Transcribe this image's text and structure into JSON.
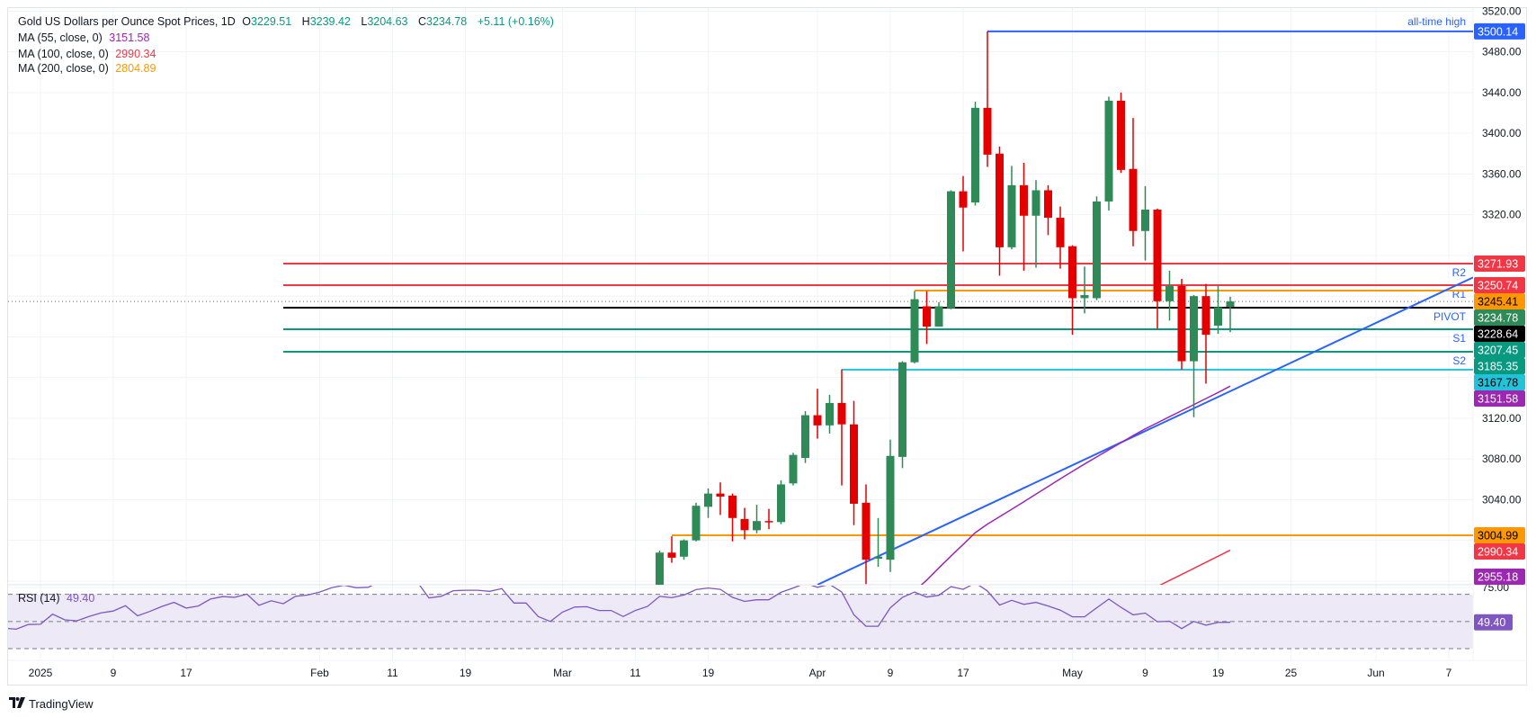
{
  "legend": {
    "title": "Gold US Dollars per Ounce Spot Prices, 1D",
    "open_label": "O",
    "open": "3229.51",
    "high_label": "H",
    "high": "3239.42",
    "low_label": "L",
    "low": "3204.63",
    "close_label": "C",
    "close": "3234.78",
    "change": "+5.11 (+0.16%)",
    "ma55_label": "MA (55, close, 0)",
    "ma55_value": "3151.58",
    "ma100_label": "MA (100, close, 0)",
    "ma100_value": "2990.34",
    "ma200_label": "MA (200, close, 0)",
    "ma200_value": "2804.89"
  },
  "rsi_legend": {
    "label": "RSI (14)",
    "value": "49.40"
  },
  "branding": {
    "logo_icon": "tradingview-logo-icon",
    "name": "TradingView"
  },
  "colors": {
    "up": "#2e8b57",
    "down": "#e50000",
    "ma55": "#9c27b0",
    "ma100": "#f23645",
    "ma200": "#ff9800",
    "trendline": "#2962ff",
    "rsi": "#7e57c2",
    "pivot": "#000000",
    "resistance": "#f23645",
    "support": "#089981"
  },
  "chart_data": [
    {
      "type": "candlestick",
      "title": "Gold US Dollars per Ounce Spot Prices, 1D",
      "ylim": [
        2956.4,
        3523
      ],
      "first_candle_bar": 54,
      "last_bar": 101,
      "ohlc_fields": [
        "open",
        "high",
        "low",
        "close"
      ],
      "candles": [
        [
          2950,
          2990,
          2945,
          2988
        ],
        [
          2988,
          3004,
          2978,
          2983
        ],
        [
          2984,
          3001,
          2981,
          3000
        ],
        [
          3000,
          3037,
          2999,
          3034
        ],
        [
          3033,
          3051,
          3022,
          3046
        ],
        [
          3046,
          3057,
          3025,
          3043
        ],
        [
          3044,
          3046,
          2999,
          3022
        ],
        [
          3021,
          3032,
          3001,
          3010
        ],
        [
          3010,
          3035,
          3007,
          3019
        ],
        [
          3019,
          3031,
          3011,
          3018
        ],
        [
          3018,
          3059,
          3016,
          3055
        ],
        [
          3056,
          3086,
          3054,
          3084
        ],
        [
          3081,
          3127,
          3076,
          3123
        ],
        [
          3123,
          3149,
          3100,
          3113
        ],
        [
          3113,
          3143,
          3105,
          3135
        ],
        [
          3135,
          3168,
          3054,
          3114
        ],
        [
          3114,
          3137,
          3015,
          3036
        ],
        [
          3037,
          3055,
          2957,
          2981
        ],
        [
          2982,
          3022,
          2974,
          2984
        ],
        [
          2981,
          3099,
          2969,
          3083
        ],
        [
          3082,
          3176,
          3071,
          3175
        ],
        [
          3175,
          3245,
          3174,
          3237
        ],
        [
          3230,
          3245,
          3193,
          3210
        ],
        [
          3210,
          3234,
          3210,
          3230
        ],
        [
          3228,
          3344,
          3227,
          3343
        ],
        [
          3343,
          3358,
          3284,
          3327
        ],
        [
          3332,
          3431,
          3329,
          3425
        ],
        [
          3425,
          3500.14,
          3367,
          3379
        ],
        [
          3380,
          3387,
          3260,
          3288
        ],
        [
          3288,
          3368,
          3286,
          3349
        ],
        [
          3349,
          3371,
          3265,
          3319
        ],
        [
          3319,
          3354,
          3268,
          3344
        ],
        [
          3344,
          3349,
          3300,
          3317
        ],
        [
          3317,
          3328,
          3267,
          3288
        ],
        [
          3289,
          3290,
          3202,
          3238
        ],
        [
          3238,
          3269,
          3223,
          3241
        ],
        [
          3238,
          3338,
          3236,
          3333
        ],
        [
          3333,
          3436,
          3324,
          3432
        ],
        [
          3432,
          3440,
          3361,
          3364
        ],
        [
          3365,
          3415,
          3289,
          3304
        ],
        [
          3304,
          3348,
          3275,
          3325
        ],
        [
          3325,
          3326,
          3208,
          3235
        ],
        [
          3235,
          3265,
          3216,
          3250
        ],
        [
          3250,
          3257,
          3167.78,
          3176
        ],
        [
          3176,
          3241,
          3121,
          3240
        ],
        [
          3240,
          3252,
          3154,
          3202
        ],
        [
          3211,
          3250,
          3203,
          3229
        ],
        [
          3229.51,
          3239.42,
          3204.63,
          3234.78
        ]
      ],
      "moving_averages": [
        {
          "name": "MA (55, close, 0)",
          "color": "#9c27b0",
          "start_bar": 75,
          "values": [
            2950,
            2961,
            2973,
            2984.6,
            2996,
            3007.6,
            3016,
            3023.2,
            3030.6,
            3038,
            3045.5,
            3053,
            3060.4,
            3067.8,
            3075,
            3082,
            3089,
            3096,
            3103,
            3109.6,
            3115.5,
            3121.5,
            3127.4,
            3133.4,
            3139.4,
            3145.3,
            3151.58
          ]
        },
        {
          "name": "MA (100, close, 0)",
          "color": "#f23645",
          "start_bar": 95,
          "values": [
            2954.7,
            2960.6,
            2966.5,
            2972.5,
            2978.4,
            2984.4,
            2990.34
          ]
        }
      ],
      "trendline": {
        "color": "#2962ff",
        "points": [
          [
            67,
            2956.4
          ],
          [
            121,
            3258.4
          ]
        ]
      },
      "levels": [
        {
          "price": 3500.14,
          "label": "all-time high",
          "color": "#2962ff",
          "start_bar": 81,
          "badge": "3500.14",
          "badge_bg": "#2962ff",
          "badge_fg": "#ffffff"
        },
        {
          "price": 3271.93,
          "label": "R2",
          "color": "#f23645",
          "start_bar": 23,
          "badge": "3271.93",
          "badge_bg": "#f23645",
          "badge_fg": "#ffffff"
        },
        {
          "price": 3250.74,
          "label": "R1",
          "color": "#f23645",
          "start_bar": 23,
          "badge": "3250.74",
          "badge_bg": "#f23645",
          "badge_fg": "#ffffff"
        },
        {
          "price": 3245.41,
          "label": "",
          "color": "#ff9800",
          "start_bar": 75,
          "badge": "3245.41",
          "badge_bg": "#ff9800",
          "badge_fg": "#000000"
        },
        {
          "price": 3228.64,
          "label": "PIVOT",
          "color": "#000000",
          "start_bar": 23,
          "badge": "3228.64",
          "badge_bg": "#000000",
          "badge_fg": "#ffffff"
        },
        {
          "price": 3207.45,
          "label": "S1",
          "color": "#089981",
          "start_bar": 23,
          "badge": "3207.45",
          "badge_bg": "#089981",
          "badge_fg": "#ffffff"
        },
        {
          "price": 3185.35,
          "label": "S2",
          "color": "#089981",
          "start_bar": 23,
          "badge": "3185.35",
          "badge_bg": "#089981",
          "badge_fg": "#ffffff"
        },
        {
          "price": 3167.78,
          "label": "",
          "color": "#22c3d8",
          "start_bar": 69,
          "badge": "3167.78",
          "badge_bg": "#22c3d8",
          "badge_fg": "#000000"
        },
        {
          "price": 3004.99,
          "label": "",
          "color": "#ff9800",
          "start_bar": 55,
          "badge": "3004.99",
          "badge_bg": "#ff9800",
          "badge_fg": "#000000"
        }
      ],
      "current_price": {
        "price": 3234.78,
        "badge": "3234.78",
        "badge_bg": "#2e8b57",
        "badge_fg": "#ffffff"
      },
      "extra_badges": [
        {
          "price": 3151.58,
          "badge": "3151.58",
          "badge_bg": "#9c27b0",
          "badge_fg": "#ffffff"
        },
        {
          "price": 2990.34,
          "badge": "2990.34",
          "badge_bg": "#f23645",
          "badge_fg": "#ffffff"
        },
        {
          "price": 2955.18,
          "badge": "2955.18",
          "badge_bg": "#9c27b0",
          "badge_fg": "#ffffff"
        }
      ],
      "price_ticks": [
        {
          "price": 3520,
          "label": "3520.00"
        },
        {
          "price": 3480,
          "label": "3480.00"
        },
        {
          "price": 3440,
          "label": "3440.00"
        },
        {
          "price": 3400,
          "label": "3400.00"
        },
        {
          "price": 3360,
          "label": "3360.00"
        },
        {
          "price": 3320,
          "label": "3320.00"
        },
        {
          "price": 3120,
          "label": "3120.00"
        },
        {
          "price": 3080,
          "label": "3080.00"
        },
        {
          "price": 3040,
          "label": "3040.00"
        }
      ],
      "grid_prices": [
        3520,
        3480,
        3440,
        3400,
        3360,
        3320,
        3280,
        3240,
        3200,
        3160,
        3120,
        3080,
        3040,
        3000,
        2960
      ],
      "time_ticks": [
        {
          "bar": 3,
          "label": "2025"
        },
        {
          "bar": 9,
          "label": "9"
        },
        {
          "bar": 15,
          "label": "17"
        },
        {
          "bar": 26,
          "label": "Feb"
        },
        {
          "bar": 32,
          "label": "11"
        },
        {
          "bar": 38,
          "label": "19"
        },
        {
          "bar": 46,
          "label": "Mar"
        },
        {
          "bar": 52,
          "label": "11"
        },
        {
          "bar": 58,
          "label": "19"
        },
        {
          "bar": 67,
          "label": "Apr"
        },
        {
          "bar": 73,
          "label": "9"
        },
        {
          "bar": 79,
          "label": "17"
        },
        {
          "bar": 88,
          "label": "May"
        },
        {
          "bar": 94,
          "label": "9"
        },
        {
          "bar": 100,
          "label": "19"
        },
        {
          "bar": 106,
          "label": "25"
        },
        {
          "bar": 113,
          "label": "Jun"
        },
        {
          "bar": 119,
          "label": "7"
        }
      ]
    },
    {
      "type": "line",
      "title": "RSI (14)",
      "ylim": [
        21.4,
        76.4
      ],
      "bands": [
        70,
        50,
        30
      ],
      "band_fill": "#ede9f7",
      "y_ticks": [
        {
          "value": 75,
          "label": "75.00"
        }
      ],
      "current_badge": {
        "value": 49.4,
        "badge": "49.40",
        "badge_bg": "#7e57c2"
      },
      "first_bar": 0,
      "values": [
        45.1,
        44.3,
        47.8,
        48.0,
        55.4,
        51.2,
        50.5,
        53.7,
        56.4,
        57.7,
        61.6,
        54.2,
        57.4,
        61.1,
        64.1,
        59.9,
        61.4,
        66.5,
        68.3,
        67.8,
        70.2,
        61.9,
        65.3,
        63.1,
        68.5,
        69.5,
        71.7,
        74.9,
        76.7,
        74.9,
        75.2,
        79.6,
        76.9,
        76.9,
        79.6,
        67.3,
        68.5,
        72.7,
        73.0,
        73.0,
        72.2,
        74.2,
        63.6,
        63.6,
        53.7,
        50.0,
        56.9,
        60.6,
        60.9,
        58.1,
        58.1,
        53.7,
        58.1,
        61.1,
        68.5,
        67.5,
        69.5,
        73.5,
        74.7,
        73.7,
        67.8,
        64.8,
        66.0,
        66.0,
        71.5,
        74.7,
        78.1,
        75.2,
        77.4,
        71.7,
        54.9,
        46.5,
        46.5,
        60.1,
        67.8,
        71.7,
        68.0,
        69.3,
        75.7,
        73.7,
        78.4,
        72.5,
        62.1,
        65.6,
        62.6,
        64.1,
        61.4,
        58.4,
        53.5,
        53.5,
        60.1,
        66.5,
        60.4,
        54.9,
        56.2,
        49.8,
        50.2,
        44.8,
        50.0,
        47.3,
        49.3,
        49.4
      ]
    }
  ]
}
